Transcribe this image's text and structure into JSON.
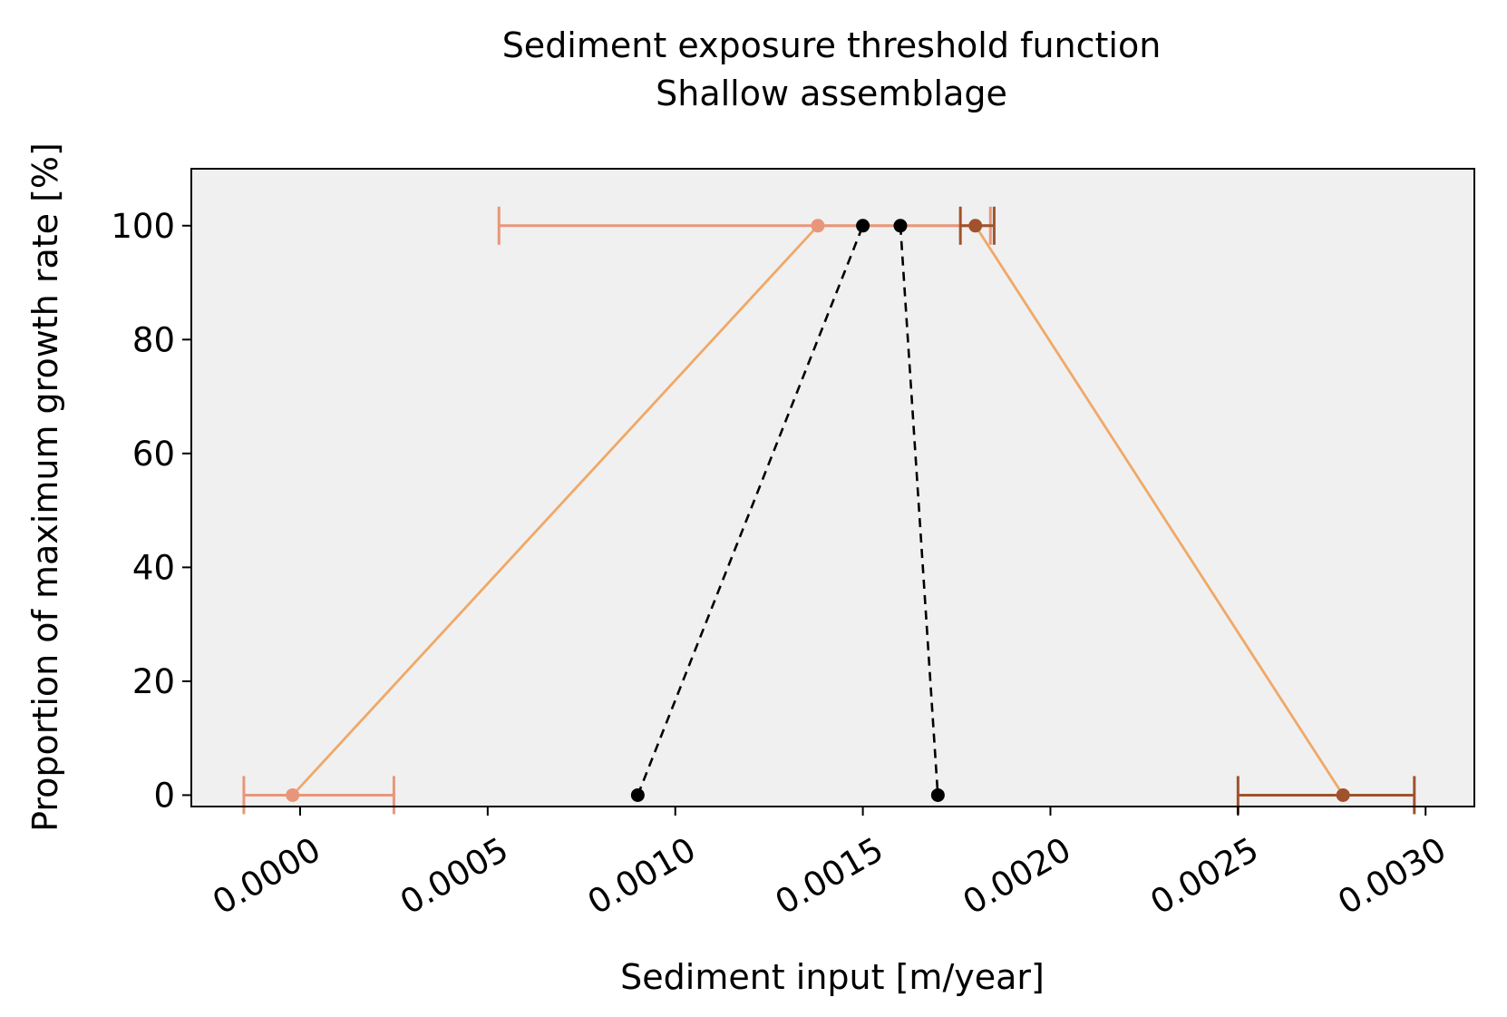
{
  "chart_data": {
    "type": "line",
    "title": "Sediment exposure threshold function",
    "subtitle": "Shallow assemblage",
    "xlabel": "Sediment input [m/year]",
    "ylabel": "Proportion of maximum growth rate [%]",
    "xlim": [
      -0.00029,
      0.00313
    ],
    "ylim": [
      -2,
      110
    ],
    "xticks": [
      0.0,
      0.0005,
      0.001,
      0.0015,
      0.002,
      0.0025,
      0.003
    ],
    "xtick_labels": [
      "0.0000",
      "0.0005",
      "0.0010",
      "0.0015",
      "0.0020",
      "0.0025",
      "0.0030"
    ],
    "yticks": [
      0,
      20,
      40,
      60,
      80,
      100
    ],
    "ytick_labels": [
      "0",
      "20",
      "40",
      "60",
      "80",
      "100"
    ],
    "grid": false,
    "background_color": "#f0f0f0",
    "series": [
      {
        "style": "solid",
        "color": "#f0a868",
        "points": [
          {
            "x": -2e-05,
            "y": 0
          },
          {
            "x": 0.00138,
            "y": 100
          },
          {
            "x": 0.0018,
            "y": 100
          },
          {
            "x": 0.00278,
            "y": 0
          }
        ]
      },
      {
        "style": "dashed",
        "color": "#000000",
        "points": [
          {
            "x": 0.0009,
            "y": 0
          },
          {
            "x": 0.0015,
            "y": 100
          }
        ]
      },
      {
        "style": "dashed",
        "color": "#000000",
        "points": [
          {
            "x": 0.0016,
            "y": 100
          },
          {
            "x": 0.0017,
            "y": 0
          }
        ]
      }
    ],
    "error_bars": [
      {
        "x": -2e-05,
        "y": 0,
        "xmin": -0.00015,
        "xmax": 0.00025,
        "color": "#e8967a",
        "marker": true
      },
      {
        "x": 0.00138,
        "y": 100,
        "xmin": 0.00053,
        "xmax": 0.00184,
        "color": "#e8967a",
        "marker": true
      },
      {
        "x": 0.0018,
        "y": 100,
        "xmin": 0.00176,
        "xmax": 0.00185,
        "color": "#a0522d",
        "marker": true
      },
      {
        "x": 0.00278,
        "y": 0,
        "xmin": 0.0025,
        "xmax": 0.00297,
        "color": "#a0522d",
        "marker": true
      }
    ]
  }
}
